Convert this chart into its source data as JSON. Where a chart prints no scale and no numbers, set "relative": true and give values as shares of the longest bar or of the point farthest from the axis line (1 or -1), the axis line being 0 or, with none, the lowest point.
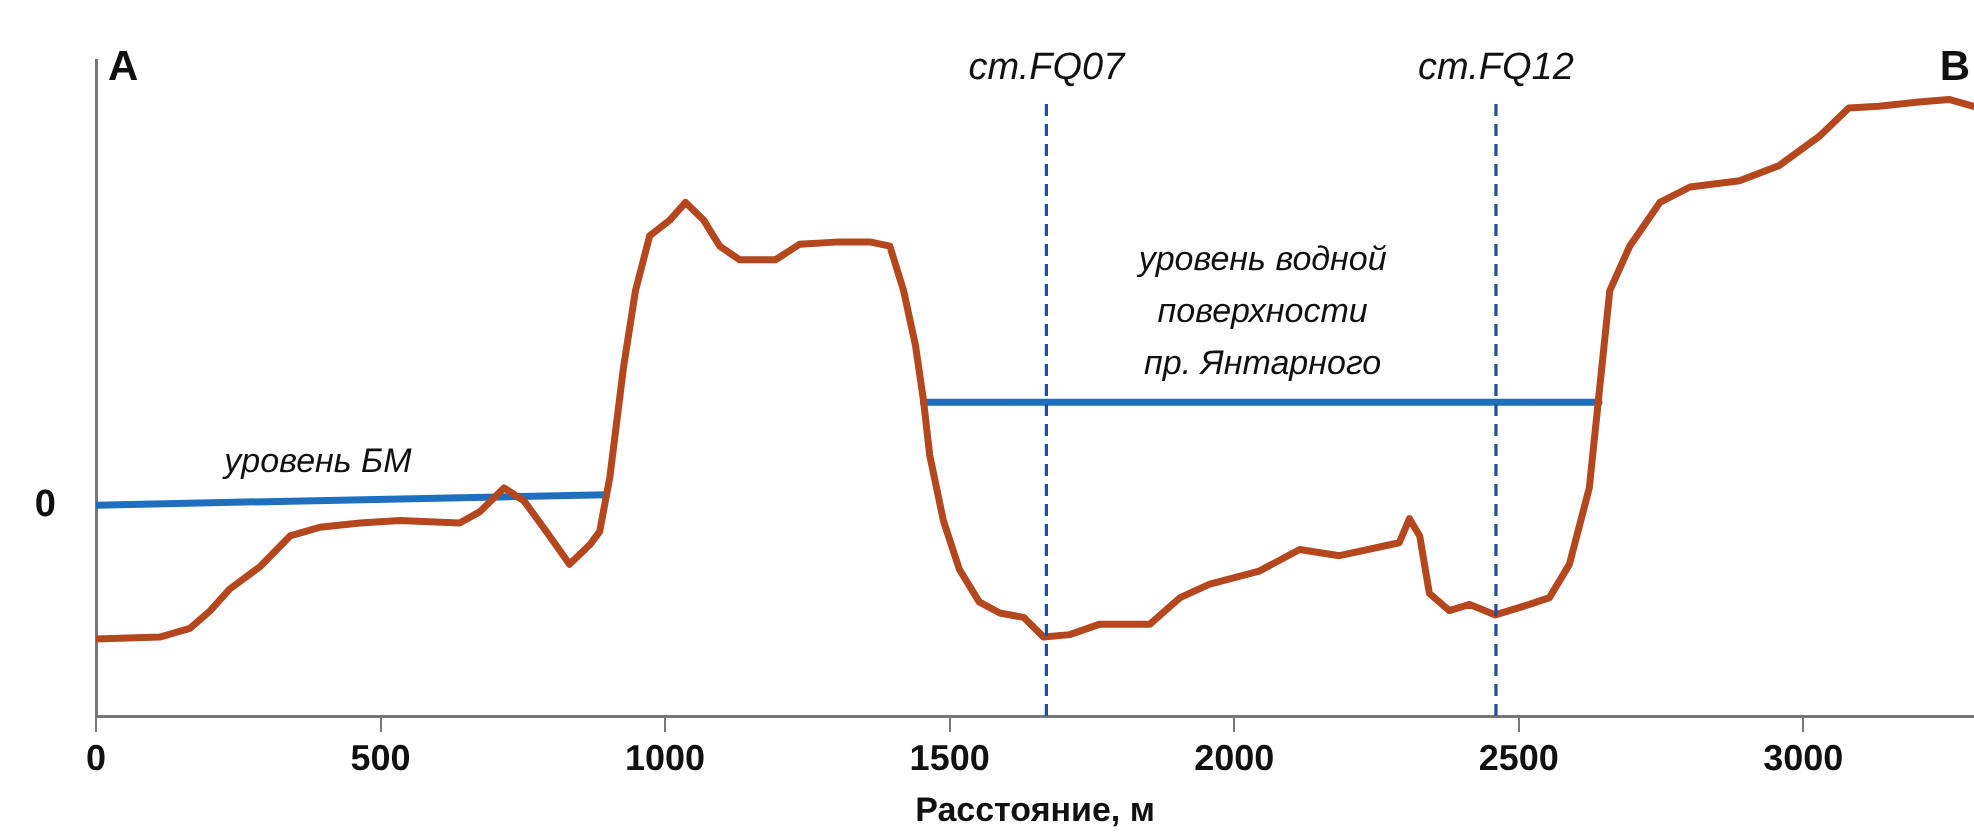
{
  "chart_data": {
    "type": "line",
    "relative": true,
    "xlabel": "Расстояние, м",
    "xlim": [
      0,
      3300
    ],
    "xticks": [
      0,
      500,
      1000,
      1500,
      2000,
      2500,
      3000
    ],
    "grid": false,
    "legend": false,
    "marker": "none",
    "line_style": "solid",
    "series": [
      {
        "color": "#b4471e",
        "x": [
          0,
          112,
          165,
          200,
          235,
          288,
          341,
          393,
          464,
          534,
          639,
          674,
          717,
          752,
          797,
          832,
          868,
          885,
          903,
          927,
          948,
          973,
          1008,
          1036,
          1068,
          1096,
          1131,
          1194,
          1236,
          1307,
          1360,
          1395,
          1419,
          1440,
          1454,
          1465,
          1489,
          1517,
          1552,
          1588,
          1630,
          1665,
          1711,
          1764,
          1852,
          1905,
          1957,
          2044,
          2115,
          2185,
          2290,
          2308,
          2326,
          2343,
          2378,
          2414,
          2459,
          2519,
          2554,
          2589,
          2624,
          2660,
          2695,
          2748,
          2801,
          2888,
          2958,
          3028,
          3080,
          3133,
          3203,
          3256,
          3298
        ],
        "values": [
          0.125,
          0.128,
          0.142,
          0.17,
          0.206,
          0.242,
          0.292,
          0.306,
          0.313,
          0.317,
          0.313,
          0.331,
          0.37,
          0.349,
          0.292,
          0.246,
          0.278,
          0.299,
          0.388,
          0.566,
          0.69,
          0.779,
          0.804,
          0.833,
          0.804,
          0.762,
          0.74,
          0.74,
          0.765,
          0.769,
          0.769,
          0.762,
          0.69,
          0.601,
          0.512,
          0.423,
          0.317,
          0.238,
          0.185,
          0.167,
          0.16,
          0.128,
          0.132,
          0.149,
          0.149,
          0.192,
          0.214,
          0.235,
          0.27,
          0.26,
          0.281,
          0.32,
          0.292,
          0.199,
          0.171,
          0.181,
          0.164,
          0.181,
          0.192,
          0.246,
          0.37,
          0.69,
          0.762,
          0.833,
          0.858,
          0.868,
          0.893,
          0.94,
          0.986,
          0.989,
          0.996,
          1,
          0.989
        ]
      },
      {
        "color": "#1f6fbf",
        "x": [
          0,
          896
        ],
        "values": [
          0.342,
          0.359
        ]
      },
      {
        "color": "#1f6fbf",
        "x": [
          1454,
          2641
        ],
        "values": [
          0.509,
          0.509
        ]
      }
    ],
    "ref_lines": [
      {
        "axis": "x",
        "value": 1670,
        "label": "ст.FQ07",
        "color": "#1f4e9c",
        "line_style": "dashed"
      },
      {
        "axis": "x",
        "value": 2460,
        "label": "ст.FQ12",
        "color": "#1f4e9c",
        "line_style": "dashed"
      }
    ],
    "annotations": [
      "A",
      "B",
      {
        "text": "0",
        "x": 0,
        "y": 0.342
      },
      {
        "text": "уровень БМ",
        "x": 390,
        "y": 0.35
      },
      {
        "text": "уровень водной\nповерхности\nпр. Янтарного",
        "x": 2050,
        "y": 0.509
      }
    ]
  }
}
